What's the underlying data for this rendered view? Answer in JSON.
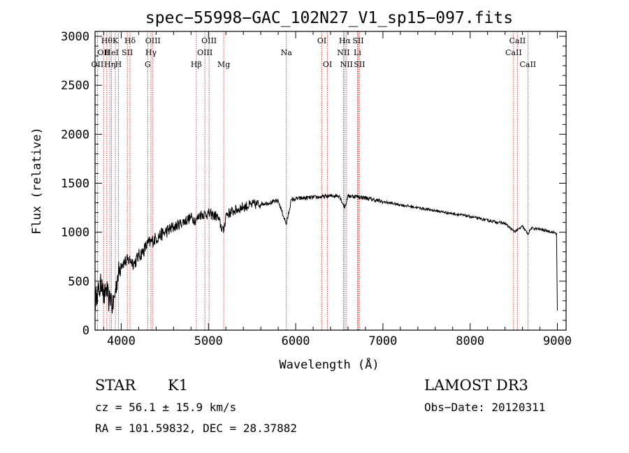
{
  "chart_data": {
    "type": "line",
    "title": "spec−55998−GAC_102N27_V1_sp15−097.fits",
    "xlabel": "Wavelength (Å)",
    "ylabel": "Flux (relative)",
    "xlim": [
      3700,
      9100
    ],
    "ylim": [
      0,
      3050
    ],
    "x_ticks": [
      4000,
      5000,
      6000,
      7000,
      8000,
      9000
    ],
    "x_tick_labels": [
      "4000",
      "5000",
      "6000",
      "7000",
      "8000",
      "9000"
    ],
    "y_ticks": [
      0,
      500,
      1000,
      1500,
      2000,
      2500,
      3000
    ],
    "y_tick_labels": [
      "0",
      "500",
      "1000",
      "1500",
      "2000",
      "2500",
      "3000"
    ],
    "series": [
      {
        "name": "spectrum",
        "x": [
          3700,
          3720,
          3750,
          3780,
          3800,
          3830,
          3860,
          3880,
          3900,
          3930,
          3960,
          4000,
          4050,
          4100,
          4150,
          4200,
          4250,
          4300,
          4340,
          4400,
          4500,
          4600,
          4700,
          4800,
          4861,
          4900,
          5000,
          5100,
          5173,
          5200,
          5300,
          5400,
          5500,
          5600,
          5700,
          5800,
          5893,
          5950,
          6000,
          6100,
          6200,
          6300,
          6400,
          6500,
          6563,
          6600,
          6700,
          6800,
          6900,
          7000,
          7200,
          7400,
          7600,
          7800,
          8000,
          8200,
          8400,
          8498,
          8542,
          8600,
          8662,
          8700,
          8800,
          8900,
          8990,
          9000
        ],
        "values": [
          280,
          380,
          400,
          520,
          300,
          440,
          280,
          360,
          220,
          380,
          560,
          680,
          700,
          720,
          680,
          760,
          800,
          880,
          900,
          940,
          1000,
          1050,
          1100,
          1150,
          1120,
          1180,
          1190,
          1160,
          1000,
          1180,
          1220,
          1260,
          1280,
          1290,
          1300,
          1320,
          1080,
          1330,
          1340,
          1350,
          1355,
          1360,
          1370,
          1375,
          1250,
          1370,
          1365,
          1350,
          1330,
          1310,
          1280,
          1250,
          1220,
          1190,
          1160,
          1120,
          1090,
          1010,
          1020,
          1060,
          980,
          1040,
          1030,
          1010,
          990,
          200
        ]
      }
    ],
    "spectral_lines": [
      {
        "wavelength": 3727,
        "label": "OII",
        "row": 2
      },
      {
        "wavelength": 3798,
        "label": "OII",
        "row": 1
      },
      {
        "wavelength": 3835,
        "label": "Hθ",
        "row": 0
      },
      {
        "wavelength": 3869,
        "label": "Hη",
        "row": 2
      },
      {
        "wavelength": 3889,
        "label": "HeI",
        "row": 1
      },
      {
        "wavelength": 3933,
        "label": "K",
        "row": 0
      },
      {
        "wavelength": 3968,
        "label": "H",
        "row": 2
      },
      {
        "wavelength": 4070,
        "label": "SII",
        "row": 1
      },
      {
        "wavelength": 4101,
        "label": "Hδ",
        "row": 0
      },
      {
        "wavelength": 4304,
        "label": "G",
        "row": 2
      },
      {
        "wavelength": 4341,
        "label": "Hγ",
        "row": 1
      },
      {
        "wavelength": 4363,
        "label": "OIII",
        "row": 0
      },
      {
        "wavelength": 4861,
        "label": "Hβ",
        "row": 2
      },
      {
        "wavelength": 4959,
        "label": "OIII",
        "row": 1
      },
      {
        "wavelength": 5007,
        "label": "OIII",
        "row": 0
      },
      {
        "wavelength": 5175,
        "label": "Mg",
        "row": 2
      },
      {
        "wavelength": 5893,
        "label": "Na",
        "row": 1
      },
      {
        "wavelength": 6300,
        "label": "OI",
        "row": 0
      },
      {
        "wavelength": 6364,
        "label": "OI",
        "row": 2
      },
      {
        "wavelength": 6548,
        "label": "NII",
        "row": 1
      },
      {
        "wavelength": 6563,
        "label": "Hα",
        "row": 0
      },
      {
        "wavelength": 6583,
        "label": "NII",
        "row": 2
      },
      {
        "wavelength": 6708,
        "label": "Li",
        "row": 1
      },
      {
        "wavelength": 6716,
        "label": "SII",
        "row": 0
      },
      {
        "wavelength": 6731,
        "label": "SII",
        "row": 2
      },
      {
        "wavelength": 8498,
        "label": "CaII",
        "row": 1
      },
      {
        "wavelength": 8542,
        "label": "CaII",
        "row": 0
      },
      {
        "wavelength": 8662,
        "label": "CaII",
        "row": 2
      }
    ]
  },
  "info": {
    "class": "STAR",
    "subclass": "K1",
    "survey": "LAMOST DR3",
    "cz": "cz = 56.1 ± 15.9 km/s",
    "obs_date": "Obs−Date: 20120311",
    "coords": "RA = 101.59832, DEC =  28.37882"
  },
  "colors": {
    "spectrum": "#000000",
    "line_marker": "#c83232",
    "axis": "#000000"
  }
}
